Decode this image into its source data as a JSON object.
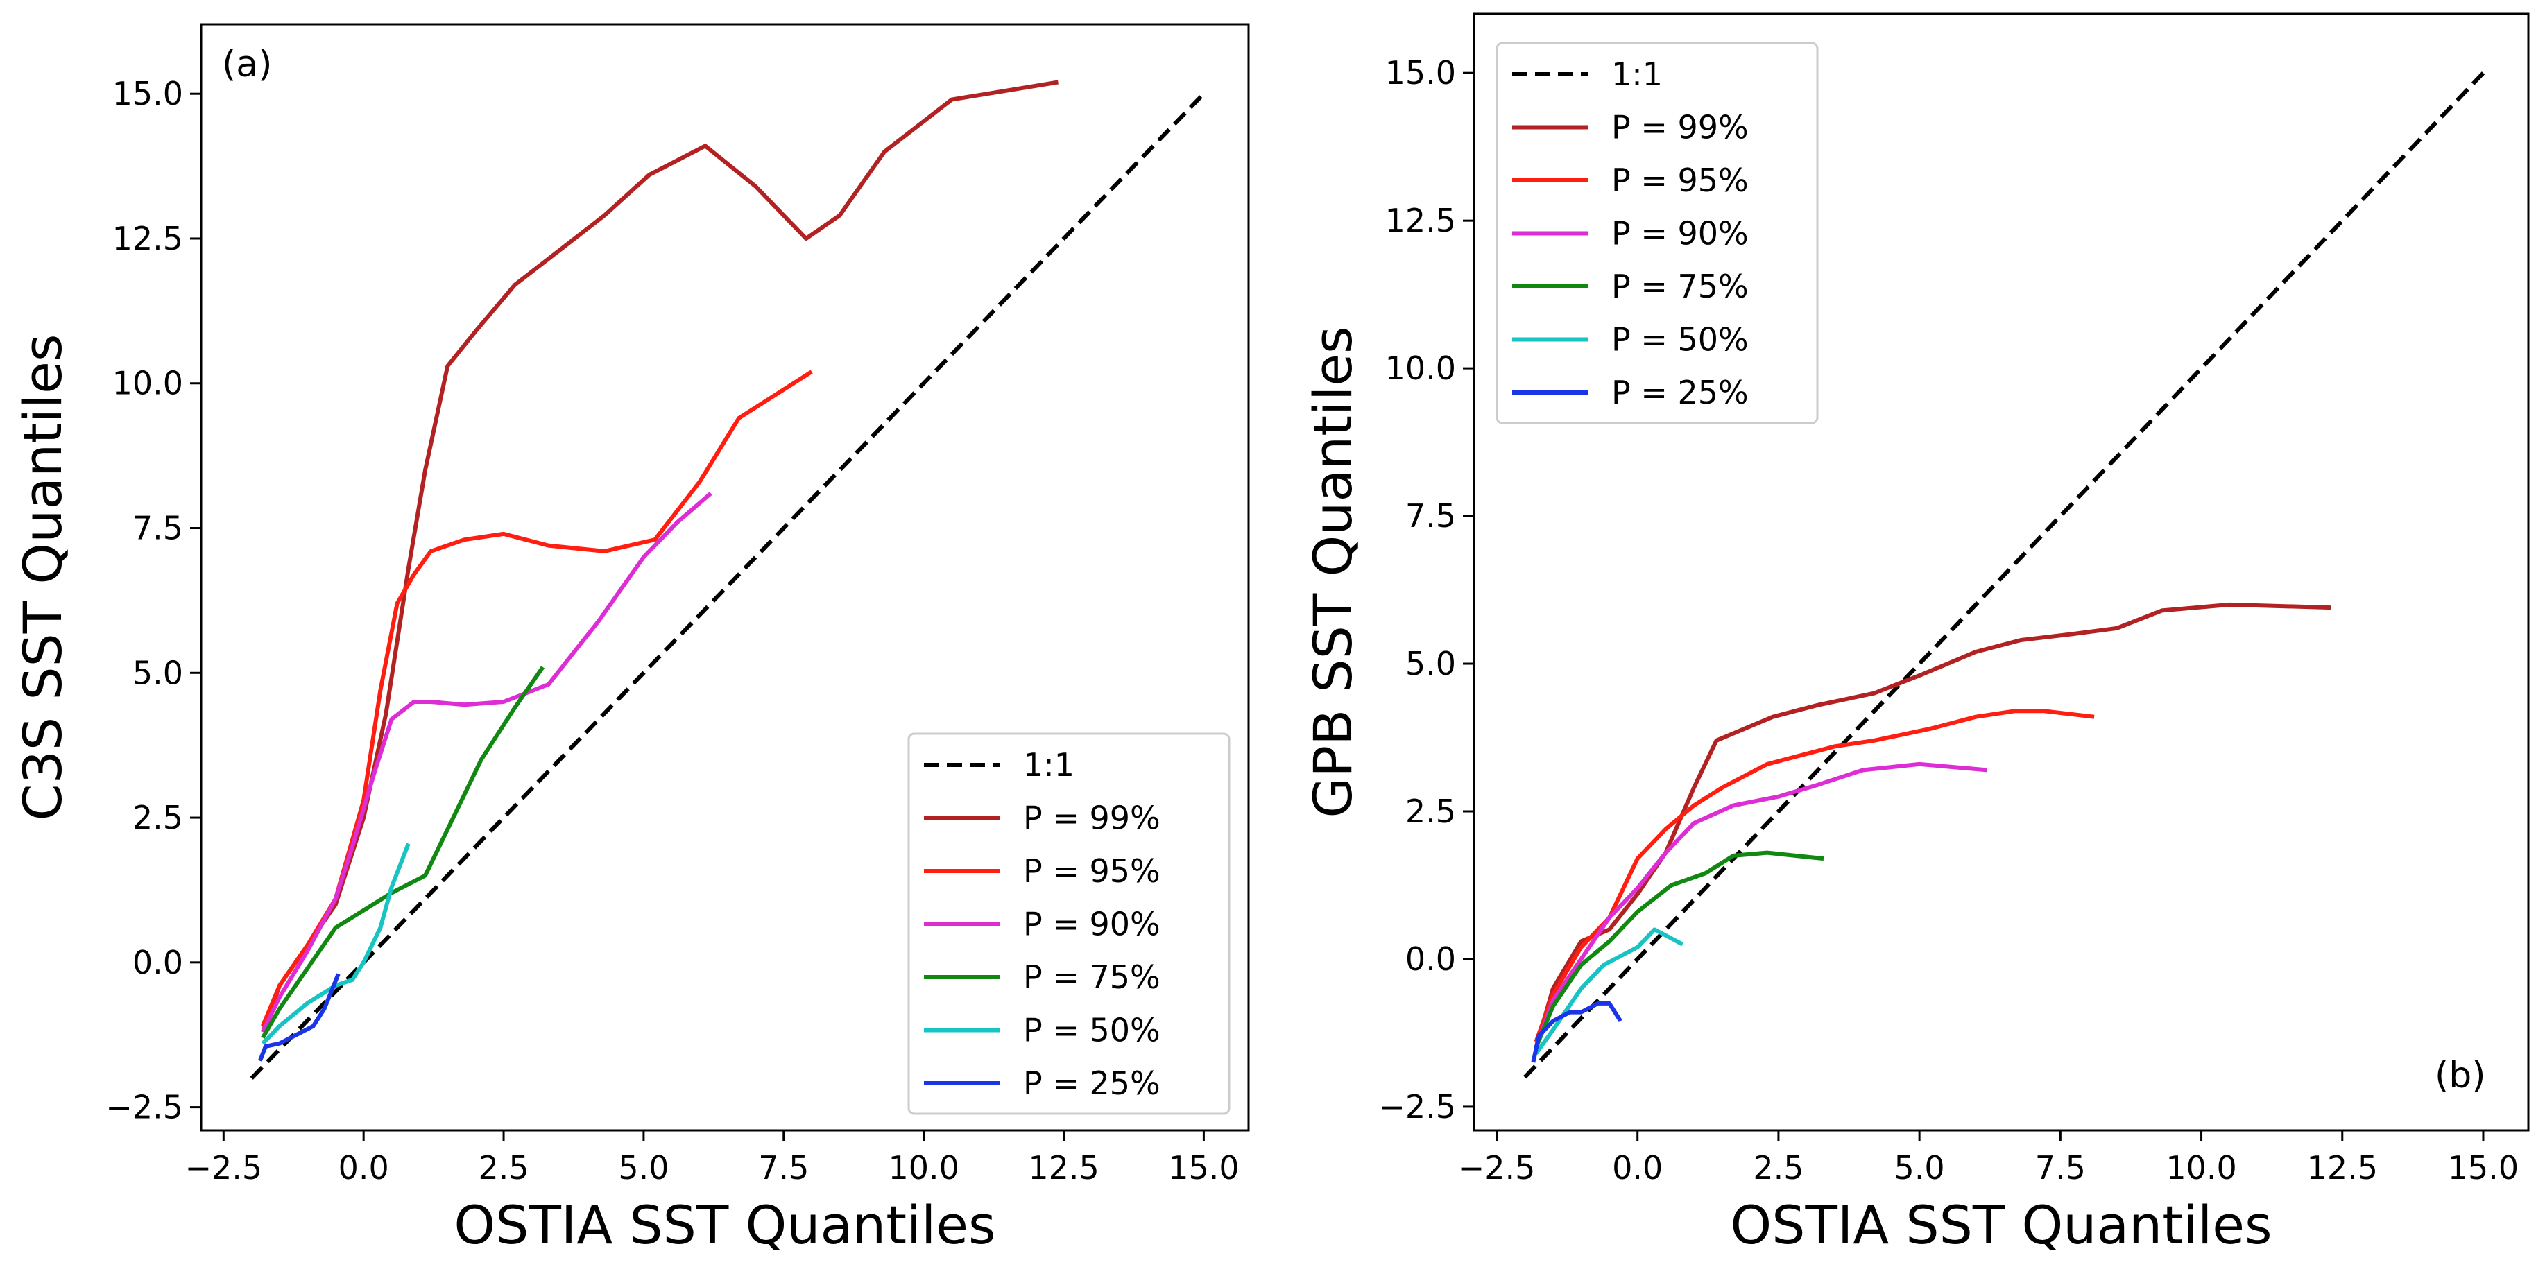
{
  "colors": {
    "one_to_one": "#000000",
    "p99": "#b22222",
    "p95": "#ff1e10",
    "p90": "#dd2ed5",
    "p75": "#118811",
    "p50": "#17c3c3",
    "p25": "#1a35e8"
  },
  "chart_data": [
    {
      "type": "line",
      "panel_label": "(a)",
      "xlabel": "OSTIA SST Quantiles",
      "ylabel": "C3S SST Quantiles",
      "xlim": [
        -2.9,
        15.8
      ],
      "ylim": [
        -2.9,
        16.2
      ],
      "xticks": [
        -2.5,
        0.0,
        2.5,
        5.0,
        7.5,
        10.0,
        12.5,
        15.0
      ],
      "yticks": [
        -2.5,
        0.0,
        2.5,
        5.0,
        7.5,
        10.0,
        12.5,
        15.0
      ],
      "xtick_labels": [
        "−2.5",
        "0.0",
        "2.5",
        "5.0",
        "7.5",
        "10.0",
        "12.5",
        "15.0"
      ],
      "ytick_labels": [
        "−2.5",
        "0.0",
        "2.5",
        "5.0",
        "7.5",
        "10.0",
        "12.5",
        "15.0"
      ],
      "legend_position": "lower-right",
      "series": [
        {
          "name": "1:1",
          "color_key": "one_to_one",
          "dashed": true,
          "x": [
            -2.0,
            15.0
          ],
          "y": [
            -2.0,
            15.0
          ]
        },
        {
          "name": "P = 99%",
          "color_key": "p99",
          "x": [
            -1.8,
            -1.5,
            -1.0,
            -0.5,
            0.0,
            0.4,
            0.8,
            1.1,
            1.5,
            2.0,
            2.7,
            3.5,
            4.3,
            5.1,
            6.1,
            7.0,
            7.9,
            8.5,
            9.3,
            10.5,
            12.4
          ],
          "y": [
            -1.2,
            -0.4,
            0.3,
            1.0,
            2.5,
            4.3,
            6.8,
            8.5,
            10.3,
            10.9,
            11.7,
            12.3,
            12.9,
            13.6,
            14.1,
            13.4,
            12.5,
            12.9,
            14.0,
            14.9,
            15.2
          ]
        },
        {
          "name": "P = 95%",
          "color_key": "p95",
          "x": [
            -1.8,
            -1.5,
            -1.0,
            -0.5,
            0.0,
            0.3,
            0.6,
            0.9,
            1.2,
            1.8,
            2.5,
            3.3,
            4.3,
            5.2,
            6.0,
            6.7,
            8.0
          ],
          "y": [
            -1.1,
            -0.4,
            0.3,
            1.1,
            2.8,
            4.7,
            6.2,
            6.7,
            7.1,
            7.3,
            7.4,
            7.2,
            7.1,
            7.3,
            8.3,
            9.4,
            10.2
          ]
        },
        {
          "name": "P = 90%",
          "color_key": "p90",
          "x": [
            -1.8,
            -1.5,
            -1.0,
            -0.5,
            -0.2,
            0.2,
            0.5,
            0.9,
            1.2,
            1.8,
            2.5,
            3.3,
            4.2,
            5.0,
            5.6,
            6.2
          ],
          "y": [
            -1.2,
            -0.6,
            0.2,
            1.1,
            2.0,
            3.3,
            4.2,
            4.5,
            4.5,
            4.45,
            4.5,
            4.8,
            5.9,
            7.0,
            7.6,
            8.1
          ]
        },
        {
          "name": "P = 75%",
          "color_key": "p75",
          "x": [
            -1.8,
            -1.5,
            -1.0,
            -0.5,
            0.0,
            0.5,
            1.1,
            1.6,
            2.1,
            2.7,
            3.2
          ],
          "y": [
            -1.3,
            -0.8,
            -0.1,
            0.6,
            0.9,
            1.2,
            1.5,
            2.5,
            3.5,
            4.4,
            5.1
          ]
        },
        {
          "name": "P = 50%",
          "color_key": "p50",
          "x": [
            -1.8,
            -1.5,
            -1.0,
            -0.5,
            -0.2,
            0.0,
            0.3,
            0.5,
            0.8
          ],
          "y": [
            -1.4,
            -1.1,
            -0.7,
            -0.4,
            -0.3,
            0.0,
            0.6,
            1.3,
            2.05
          ]
        },
        {
          "name": "P = 25%",
          "color_key": "p25",
          "x": [
            -1.85,
            -1.75,
            -1.5,
            -1.2,
            -0.9,
            -0.7,
            -0.45
          ],
          "y": [
            -1.7,
            -1.45,
            -1.4,
            -1.25,
            -1.1,
            -0.8,
            -0.2
          ]
        }
      ]
    },
    {
      "type": "line",
      "panel_label": "(b)",
      "xlabel": "OSTIA SST Quantiles",
      "ylabel": "GPB SST Quantiles",
      "xlim": [
        -2.9,
        15.8
      ],
      "ylim": [
        -2.9,
        16.0
      ],
      "xticks": [
        -2.5,
        0.0,
        2.5,
        5.0,
        7.5,
        10.0,
        12.5,
        15.0
      ],
      "yticks": [
        -2.5,
        0.0,
        2.5,
        5.0,
        7.5,
        10.0,
        12.5,
        15.0
      ],
      "xtick_labels": [
        "−2.5",
        "0.0",
        "2.5",
        "5.0",
        "7.5",
        "10.0",
        "12.5",
        "15.0"
      ],
      "ytick_labels": [
        "−2.5",
        "0.0",
        "2.5",
        "5.0",
        "7.5",
        "10.0",
        "12.5",
        "15.0"
      ],
      "legend_position": "upper-left",
      "series": [
        {
          "name": "1:1",
          "color_key": "one_to_one",
          "dashed": true,
          "x": [
            -2.0,
            15.0
          ],
          "y": [
            -2.0,
            15.0
          ]
        },
        {
          "name": "P = 99%",
          "color_key": "p99",
          "x": [
            -1.8,
            -1.5,
            -1.0,
            -0.5,
            0.0,
            0.5,
            1.0,
            1.4,
            2.4,
            3.2,
            4.2,
            5.0,
            6.0,
            6.8,
            7.7,
            8.5,
            9.3,
            10.5,
            12.3
          ],
          "y": [
            -1.5,
            -0.5,
            0.3,
            0.5,
            1.1,
            1.8,
            2.9,
            3.7,
            4.1,
            4.3,
            4.5,
            4.8,
            5.2,
            5.4,
            5.5,
            5.6,
            5.9,
            6.0,
            5.95
          ]
        },
        {
          "name": "P = 95%",
          "color_key": "p95",
          "x": [
            -1.8,
            -1.5,
            -1.0,
            -0.5,
            0.0,
            0.5,
            1.0,
            1.5,
            2.3,
            3.5,
            4.2,
            5.2,
            6.0,
            6.7,
            7.2,
            8.1
          ],
          "y": [
            -1.4,
            -0.6,
            0.2,
            0.7,
            1.7,
            2.2,
            2.6,
            2.9,
            3.3,
            3.6,
            3.7,
            3.9,
            4.1,
            4.2,
            4.2,
            4.1
          ]
        },
        {
          "name": "P = 90%",
          "color_key": "p90",
          "x": [
            -1.8,
            -1.5,
            -1.0,
            -0.5,
            0.0,
            0.5,
            1.0,
            1.7,
            2.5,
            3.2,
            4.0,
            5.0,
            5.6,
            6.2
          ],
          "y": [
            -1.5,
            -0.7,
            0.0,
            0.7,
            1.2,
            1.8,
            2.3,
            2.6,
            2.75,
            2.95,
            3.2,
            3.3,
            3.25,
            3.2
          ]
        },
        {
          "name": "P = 75%",
          "color_key": "p75",
          "x": [
            -1.8,
            -1.5,
            -1.0,
            -0.5,
            0.0,
            0.6,
            1.2,
            1.7,
            2.3,
            3.3
          ],
          "y": [
            -1.5,
            -0.8,
            -0.1,
            0.3,
            0.8,
            1.25,
            1.45,
            1.75,
            1.8,
            1.7
          ]
        },
        {
          "name": "P = 50%",
          "color_key": "p50",
          "x": [
            -1.8,
            -1.5,
            -1.0,
            -0.6,
            -0.2,
            0.0,
            0.3,
            0.5,
            0.8
          ],
          "y": [
            -1.6,
            -1.2,
            -0.5,
            -0.1,
            0.1,
            0.2,
            0.5,
            0.4,
            0.25
          ]
        },
        {
          "name": "P = 25%",
          "color_key": "p25",
          "x": [
            -1.85,
            -1.75,
            -1.5,
            -1.2,
            -1.0,
            -0.7,
            -0.5,
            -0.3
          ],
          "y": [
            -1.75,
            -1.3,
            -1.05,
            -0.9,
            -0.9,
            -0.75,
            -0.75,
            -1.05
          ]
        }
      ]
    }
  ]
}
